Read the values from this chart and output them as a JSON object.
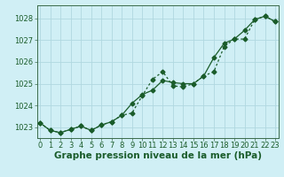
{
  "title": "Graphe pression niveau de la mer (hPa)",
  "background_color": "#d0eff5",
  "grid_color": "#b0d8e0",
  "line_color": "#1a5c2a",
  "x_hours": [
    0,
    1,
    2,
    3,
    4,
    5,
    6,
    7,
    8,
    9,
    10,
    11,
    12,
    13,
    14,
    15,
    16,
    17,
    18,
    19,
    20,
    21,
    22,
    23
  ],
  "series1_dotted": [
    1023.2,
    1022.85,
    1022.75,
    1022.9,
    1023.05,
    1022.85,
    1023.1,
    1023.25,
    1023.55,
    1023.65,
    1024.45,
    1025.2,
    1025.55,
    1024.9,
    1024.85,
    1025.0,
    1025.35,
    1025.55,
    1026.7,
    1027.05,
    1027.05,
    1027.95,
    1028.1,
    1027.85
  ],
  "series2_solid": [
    1023.2,
    1022.85,
    1022.75,
    1022.9,
    1023.05,
    1022.85,
    1023.1,
    1023.25,
    1023.55,
    1024.1,
    1024.5,
    1024.7,
    1025.15,
    1025.05,
    1025.0,
    1025.0,
    1025.35,
    1026.2,
    1026.85,
    1027.05,
    1027.45,
    1027.95,
    1028.1,
    1027.85
  ],
  "ylim_min": 1022.5,
  "ylim_max": 1028.6,
  "yticks": [
    1023,
    1024,
    1025,
    1026,
    1027,
    1028
  ],
  "xtick_labels": [
    "0",
    "1",
    "2",
    "3",
    "4",
    "5",
    "6",
    "7",
    "8",
    "9",
    "10",
    "11",
    "12",
    "13",
    "14",
    "15",
    "16",
    "17",
    "18",
    "19",
    "20",
    "21",
    "22",
    "23"
  ],
  "markersize": 2.5,
  "linewidth": 0.9,
  "title_fontsize": 7.5,
  "tick_fontsize": 6,
  "ylabel_fontsize": 6
}
